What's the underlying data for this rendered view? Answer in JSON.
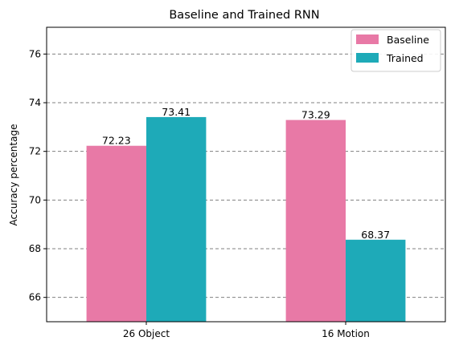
{
  "chart_data": {
    "type": "bar",
    "title": "Baseline and Trained RNN",
    "xlabel": "",
    "ylabel": "Accuracy percentage",
    "categories": [
      "26 Object",
      "16 Motion"
    ],
    "series": [
      {
        "name": "Baseline",
        "values": [
          72.23,
          73.29
        ],
        "color": "#e879a6"
      },
      {
        "name": "Trained",
        "values": [
          73.41,
          68.37
        ],
        "color": "#1eaab8"
      }
    ],
    "value_labels": [
      [
        "72.23",
        "73.29"
      ],
      [
        "73.41",
        "68.37"
      ]
    ],
    "ylim": [
      65,
      77.1
    ],
    "yticks": [
      66,
      68,
      70,
      72,
      74,
      76
    ],
    "ytick_labels": [
      "66",
      "68",
      "70",
      "72",
      "74",
      "76"
    ],
    "grid": true,
    "grid_style": "dashed horizontal",
    "legend_position": "top-right"
  }
}
